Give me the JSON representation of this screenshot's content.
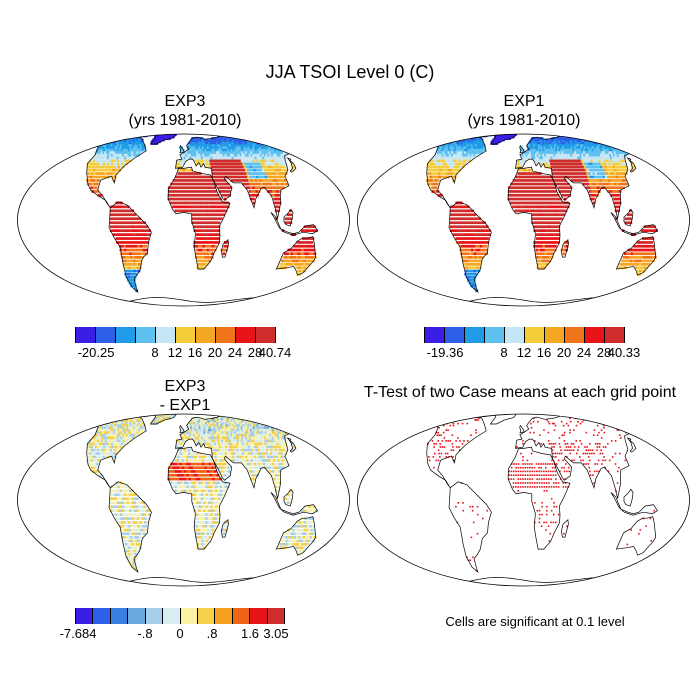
{
  "figure": {
    "title": "JJA TSOI Level 0 (C)"
  },
  "panels": [
    {
      "id": "exp3",
      "title_line1": "EXP3",
      "title_line2": "(yrs 1981-2010)",
      "kind": "absolute",
      "colorbar": {
        "min_label": "-20.25",
        "max_label": "40.74",
        "ticks": [
          "8",
          "12",
          "16",
          "20",
          "24",
          "28"
        ],
        "colors": [
          "#3a1ee6",
          "#2f5ee8",
          "#1f9be8",
          "#5ec1ef",
          "#c5e6f6",
          "#f5cc3a",
          "#f5a623",
          "#f07419",
          "#e81418",
          "#cf2d2b"
        ]
      }
    },
    {
      "id": "exp1",
      "title_line1": "EXP1",
      "title_line2": "(yrs 1981-2010)",
      "kind": "absolute",
      "colorbar": {
        "min_label": "-19.36",
        "max_label": "40.33",
        "ticks": [
          "8",
          "12",
          "16",
          "20",
          "24",
          "28"
        ],
        "colors": [
          "#3a1ee6",
          "#2f5ee8",
          "#1f9be8",
          "#5ec1ef",
          "#c5e6f6",
          "#f5cc3a",
          "#f5a623",
          "#f07419",
          "#e81418",
          "#cf2d2b"
        ]
      }
    },
    {
      "id": "diff",
      "title_line1": "EXP3",
      "title_line2": "- EXP1",
      "kind": "difference",
      "colorbar": {
        "min_label": "-7.684",
        "max_label": "3.05",
        "ticks": [
          "-.8",
          "0",
          ".8",
          "1.6"
        ],
        "colors": [
          "#3a1ee6",
          "#2f5ee8",
          "#3b7fe2",
          "#6aa8e2",
          "#a8cfe8",
          "#d8eef0",
          "#fbf2a4",
          "#f7d04a",
          "#f5a020",
          "#f06418",
          "#e81418",
          "#cf2d2b"
        ]
      }
    },
    {
      "id": "ttest",
      "title_line1": "T-Test of two Case means at each grid point",
      "kind": "significance",
      "note": "Cells are significant at 0.1 level",
      "marker_color": "#e8141c"
    }
  ]
}
